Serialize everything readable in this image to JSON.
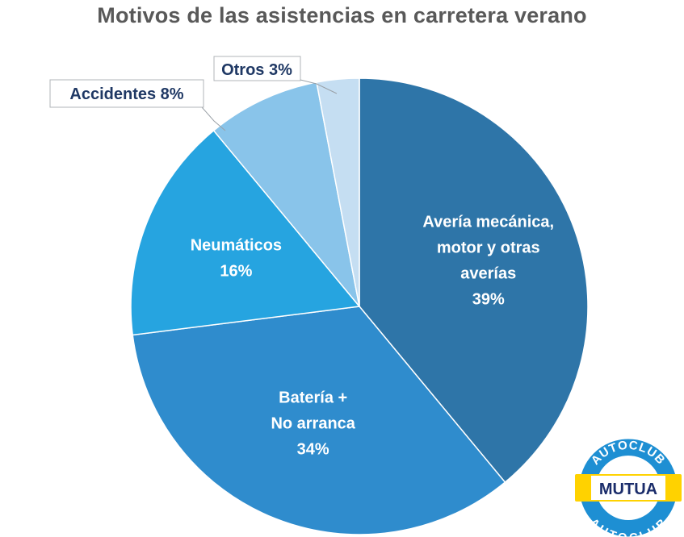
{
  "chart_data": {
    "type": "pie",
    "title": "Motivos de las asistencias en carretera verano",
    "slices": [
      {
        "label_lines": [
          "Avería mecánica,",
          "motor y otras",
          "averías"
        ],
        "value_text": "39%",
        "value": 39,
        "color": "#2e75a8"
      },
      {
        "label_lines": [
          "Batería +",
          "No arranca"
        ],
        "value_text": "34%",
        "value": 34,
        "color": "#2f8ccd"
      },
      {
        "label_lines": [
          "Neumáticos"
        ],
        "value_text": "16%",
        "value": 16,
        "color": "#26a4e0"
      },
      {
        "label_lines": [
          "Accidentes"
        ],
        "value_text": "8%",
        "value": 8,
        "color": "#89c4ea"
      },
      {
        "label_lines": [
          "Otros"
        ],
        "value_text": "3%",
        "value": 3,
        "color": "#c5def2"
      }
    ]
  },
  "callouts": {
    "accidentes": "Accidentes 8%",
    "otros": "Otros 3%"
  },
  "logo": {
    "top_text": "AUTOCLUB",
    "center_text": "MUTUA",
    "bottom_text": "AUTOCLUB",
    "blue": "#1e8fd3",
    "yellow": "#ffd200",
    "navy": "#1b2d6b"
  }
}
